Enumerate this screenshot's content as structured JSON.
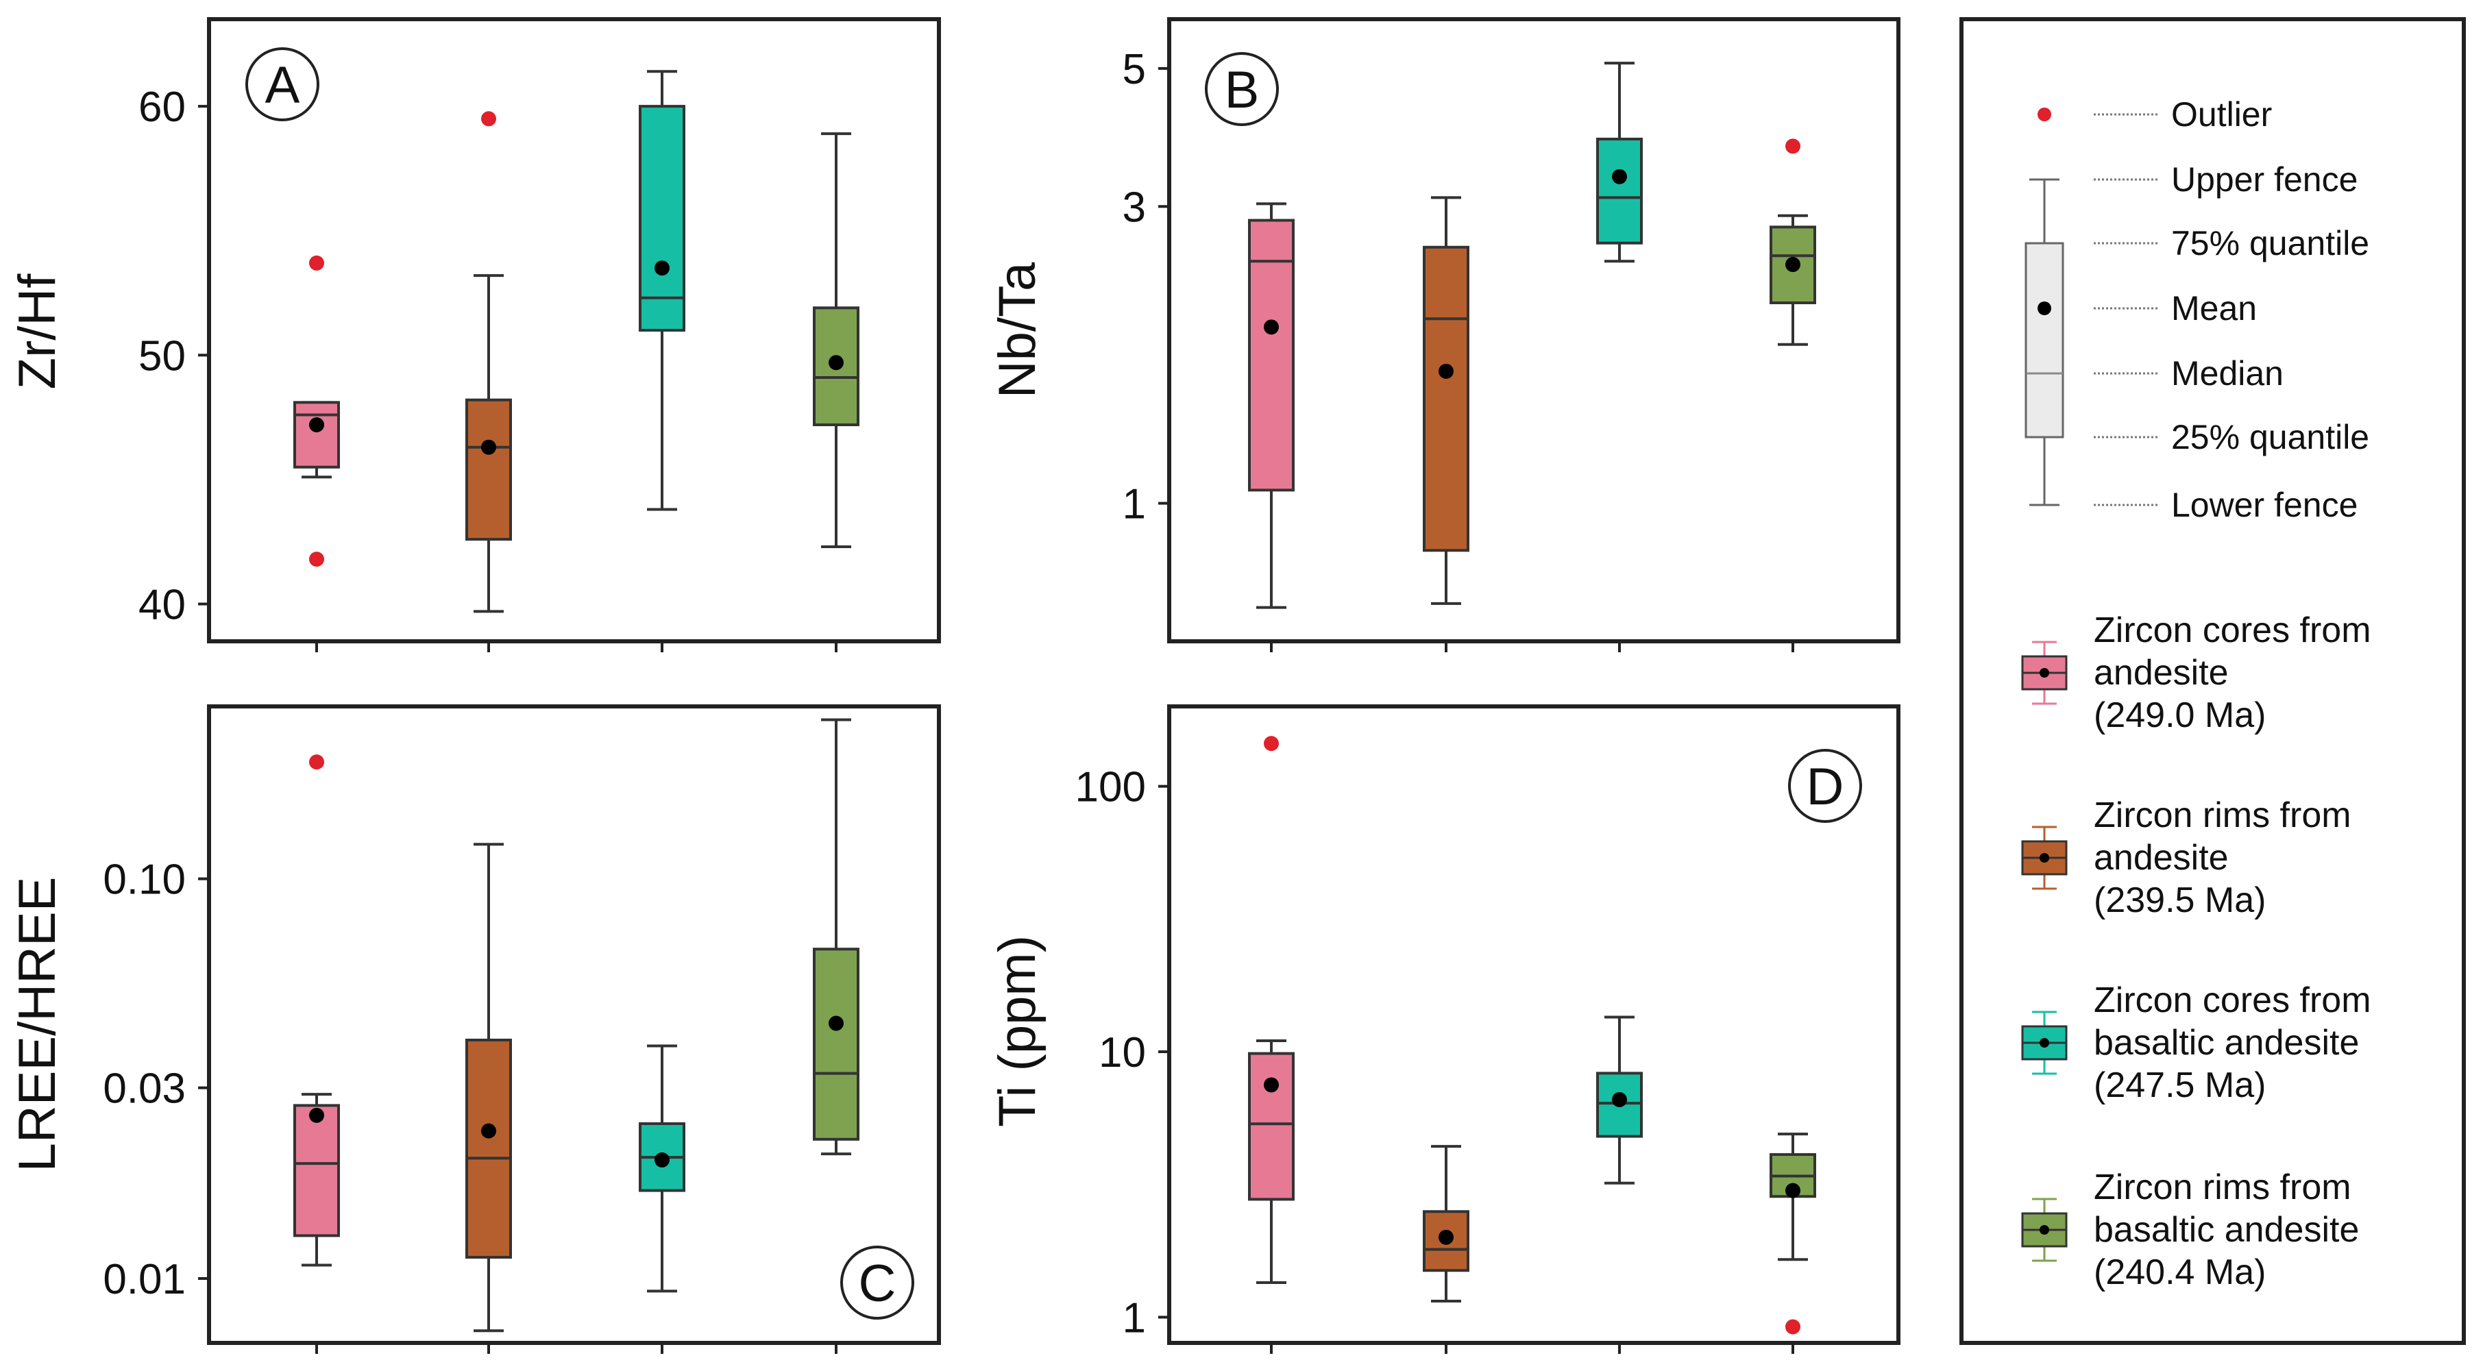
{
  "colors": {
    "pink": "#E67A94",
    "brown": "#B65F2E",
    "teal": "#16BFA4",
    "green": "#7EA250",
    "outlier": "#E0202A",
    "legend_box": "#EBEBEB",
    "mean_dot": "#000000"
  },
  "chart_data": [
    {
      "id": "A",
      "type": "box",
      "panel_label": "A",
      "ylabel": "Zr/Hf",
      "scale": "linear",
      "ylim": [
        38.5,
        63.5
      ],
      "yticks": [
        {
          "v": 40,
          "label": "40"
        },
        {
          "v": 50,
          "label": "50"
        },
        {
          "v": 60,
          "label": "60"
        }
      ],
      "series": [
        {
          "name": "Zircon cores from andesite",
          "color": "pink",
          "lower": 45.1,
          "q1": 45.5,
          "median": 47.6,
          "q3": 48.1,
          "upper": 48.1,
          "mean": 47.2,
          "outliers": [
            53.7,
            41.8
          ]
        },
        {
          "name": "Zircon rims from andesite",
          "color": "brown",
          "lower": 39.7,
          "q1": 42.6,
          "median": 46.3,
          "q3": 48.2,
          "upper": 53.2,
          "mean": 46.3,
          "outliers": [
            59.5
          ]
        },
        {
          "name": "Zircon cores from basaltic andesite",
          "color": "teal",
          "lower": 43.8,
          "q1": 51.0,
          "median": 52.3,
          "q3": 60.0,
          "upper": 61.4,
          "mean": 53.5,
          "outliers": []
        },
        {
          "name": "Zircon rims from basaltic andesite",
          "color": "green",
          "lower": 42.3,
          "q1": 47.2,
          "median": 49.1,
          "q3": 51.9,
          "upper": 58.9,
          "mean": 49.7,
          "outliers": []
        }
      ]
    },
    {
      "id": "B",
      "type": "box",
      "panel_label": "B",
      "ylabel": "Nb/Ta",
      "scale": "log",
      "ylim": [
        0.6,
        6.0
      ],
      "yticks": [
        {
          "v": 1,
          "label": "1"
        },
        {
          "v": 3,
          "label": "3"
        },
        {
          "v": 5,
          "label": "5"
        }
      ],
      "series": [
        {
          "name": "Zircon cores from andesite",
          "color": "pink",
          "lower": 0.68,
          "q1": 1.05,
          "median": 2.45,
          "q3": 2.85,
          "upper": 3.03,
          "mean": 1.92,
          "outliers": []
        },
        {
          "name": "Zircon rims from andesite",
          "color": "brown",
          "lower": 0.69,
          "q1": 0.84,
          "median": 1.98,
          "q3": 2.58,
          "upper": 3.1,
          "mean": 1.63,
          "outliers": []
        },
        {
          "name": "Zircon cores from basaltic andesite",
          "color": "teal",
          "lower": 2.45,
          "q1": 2.62,
          "median": 3.1,
          "q3": 3.85,
          "upper": 5.1,
          "mean": 3.35,
          "outliers": []
        },
        {
          "name": "Zircon rims from basaltic andesite",
          "color": "green",
          "lower": 1.8,
          "q1": 2.1,
          "median": 2.5,
          "q3": 2.78,
          "upper": 2.9,
          "mean": 2.42,
          "outliers": [
            3.75
          ]
        }
      ]
    },
    {
      "id": "C",
      "type": "box",
      "panel_label": "C",
      "ylabel": "LREE/HREE",
      "scale": "log",
      "ylim": [
        0.0069,
        0.27
      ],
      "yticks": [
        {
          "v": 0.01,
          "label": "0.01"
        },
        {
          "v": 0.03,
          "label": "0.03"
        },
        {
          "v": 0.1,
          "label": "0.10"
        }
      ],
      "series": [
        {
          "name": "Zircon cores from andesite",
          "color": "pink",
          "lower": 0.0108,
          "q1": 0.0128,
          "median": 0.0194,
          "q3": 0.0271,
          "upper": 0.0289,
          "mean": 0.0256,
          "outliers": [
            0.196
          ]
        },
        {
          "name": "Zircon rims from andesite",
          "color": "brown",
          "lower": 0.0074,
          "q1": 0.0113,
          "median": 0.02,
          "q3": 0.0395,
          "upper": 0.122,
          "mean": 0.0234,
          "outliers": []
        },
        {
          "name": "Zircon cores from basaltic andesite",
          "color": "teal",
          "lower": 0.0093,
          "q1": 0.0166,
          "median": 0.0201,
          "q3": 0.0244,
          "upper": 0.0382,
          "mean": 0.0198,
          "outliers": []
        },
        {
          "name": "Zircon rims from basaltic andesite",
          "color": "green",
          "lower": 0.0205,
          "q1": 0.0223,
          "median": 0.0326,
          "q3": 0.0667,
          "upper": 0.25,
          "mean": 0.0435,
          "outliers": []
        }
      ]
    },
    {
      "id": "D",
      "type": "box",
      "panel_label": "D",
      "ylabel": "Ti (ppm)",
      "scale": "log",
      "ylim": [
        0.8,
        200
      ],
      "yticks": [
        {
          "v": 1,
          "label": "1"
        },
        {
          "v": 10,
          "label": "10"
        },
        {
          "v": 100,
          "label": "100"
        }
      ],
      "series": [
        {
          "name": "Zircon cores from andesite",
          "color": "pink",
          "lower": 1.35,
          "q1": 2.78,
          "median": 5.35,
          "q3": 9.85,
          "upper": 11.0,
          "mean": 7.5,
          "outliers": [
            145
          ]
        },
        {
          "name": "Zircon rims from andesite",
          "color": "brown",
          "lower": 1.15,
          "q1": 1.5,
          "median": 1.8,
          "q3": 2.5,
          "upper": 4.4,
          "mean": 2.0,
          "outliers": []
        },
        {
          "name": "Zircon cores from basaltic andesite",
          "color": "teal",
          "lower": 3.2,
          "q1": 4.8,
          "median": 6.4,
          "q3": 8.3,
          "upper": 13.5,
          "mean": 6.6,
          "outliers": []
        },
        {
          "name": "Zircon rims from basaltic andesite",
          "color": "green",
          "lower": 1.65,
          "q1": 2.85,
          "median": 3.4,
          "q3": 4.1,
          "upper": 4.9,
          "mean": 3.0,
          "outliers": [
            0.92
          ]
        }
      ]
    }
  ],
  "legend": {
    "keys": [
      {
        "id": "outlier",
        "label": "Outlier"
      },
      {
        "id": "upper-fence",
        "label": "Upper fence"
      },
      {
        "id": "q75",
        "label": "75% quantile"
      },
      {
        "id": "mean",
        "label": "Mean"
      },
      {
        "id": "median",
        "label": "Median"
      },
      {
        "id": "q25",
        "label": "25% quantile"
      },
      {
        "id": "lower-fence",
        "label": "Lower fence"
      }
    ],
    "series": [
      {
        "color": "pink",
        "lines": [
          "Zircon cores from",
          "andesite",
          "(249.0 Ma)"
        ]
      },
      {
        "color": "brown",
        "lines": [
          "Zircon rims from",
          "andesite",
          "(239.5 Ma)"
        ]
      },
      {
        "color": "teal",
        "lines": [
          "Zircon cores from",
          "basaltic andesite",
          "(247.5 Ma)"
        ]
      },
      {
        "color": "green",
        "lines": [
          "Zircon rims from",
          "basaltic andesite",
          "(240.4 Ma)"
        ]
      }
    ]
  }
}
